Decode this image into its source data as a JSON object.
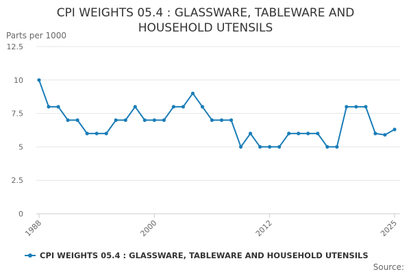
{
  "chart_data": {
    "type": "line",
    "title": "CPI WEIGHTS 05.4 : GLASSWARE, TABLEWARE AND HOUSEHOLD UTENSILS",
    "ylabel": "Parts per 1000",
    "xlabel": "",
    "x": [
      1988,
      1989,
      1990,
      1991,
      1992,
      1993,
      1994,
      1995,
      1996,
      1997,
      1998,
      1999,
      2000,
      2001,
      2002,
      2003,
      2004,
      2005,
      2006,
      2007,
      2008,
      2009,
      2010,
      2011,
      2012,
      2013,
      2014,
      2015,
      2016,
      2017,
      2018,
      2019,
      2020,
      2021,
      2022,
      2023,
      2024,
      2025
    ],
    "series": [
      {
        "name": "CPI WEIGHTS 05.4 : GLASSWARE, TABLEWARE AND HOUSEHOLD UTENSILS",
        "color": "#1a7db8",
        "values": [
          10,
          8,
          8,
          7,
          7,
          6,
          6,
          6,
          7,
          7,
          8,
          7,
          7,
          7,
          8,
          8,
          9,
          8,
          7,
          7,
          7,
          5,
          6,
          5,
          5,
          5,
          6,
          6,
          6,
          6,
          5,
          5,
          8,
          8,
          8,
          6,
          5.9,
          6.3
        ]
      }
    ],
    "xlim": [
      1988,
      2025
    ],
    "ylim": [
      0,
      12.5
    ],
    "yticks": [
      "0",
      "2.5",
      "5",
      "7.5",
      "10",
      "12.5"
    ],
    "xticks": [
      "1988",
      "2000",
      "2012",
      "2025"
    ],
    "grid": true,
    "legend": "bottom"
  },
  "source_label": "Source:"
}
